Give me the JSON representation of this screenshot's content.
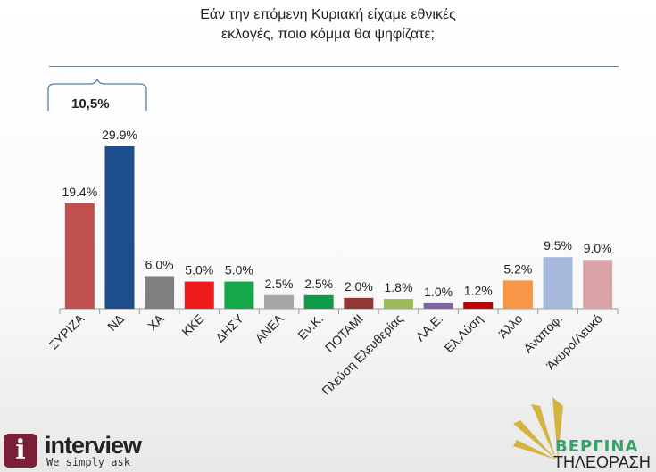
{
  "title_line1": "Εάν την επόμενη Κυριακή είχαμε εθνικές",
  "title_line2": "εκλογές, ποιο κόμμα θα ψηφίζατε;",
  "difference_label": "10,5%",
  "logo": {
    "name": "interview",
    "tagline": "We simply ask"
  },
  "broadcaster": {
    "name": "ΒΕΡΓΙΝΑ",
    "sub": "ΤΗΛΕΟΡΑΣΗ"
  },
  "chart_data": {
    "type": "bar",
    "title": "Εάν την επόμενη Κυριακή είχαμε εθνικές εκλογές, ποιο κόμμα θα ψηφίζατε;",
    "categories": [
      "ΣΥΡΙΖΑ",
      "ΝΔ",
      "ΧΑ",
      "ΚΚΕ",
      "ΔΗΣΥ",
      "ΑΝΕΛ",
      "Εν.Κ.",
      "ΠΟΤΑΜΙ",
      "Πλεύση Ελευθερίας",
      "ΛΑ.Ε.",
      "Ελ.Λύση",
      "Άλλο",
      "Αναποφ.",
      "Άκυρο/Λευκό"
    ],
    "values": [
      19.4,
      29.9,
      6.0,
      5.0,
      5.0,
      2.5,
      2.5,
      2.0,
      1.8,
      1.0,
      1.2,
      5.2,
      9.5,
      9.0
    ],
    "labels": [
      "19.4%",
      "29.9%",
      "6.0%",
      "5.0%",
      "5.0%",
      "2.5%",
      "2.5%",
      "2.0%",
      "1.8%",
      "1.0%",
      "1.2%",
      "5.2%",
      "9.5%",
      "9.0%"
    ],
    "colors": [
      "#c0504d",
      "#1f4e8c",
      "#808080",
      "#ee1c1c",
      "#14a84a",
      "#a6a6a6",
      "#109a4a",
      "#943634",
      "#9bbb59",
      "#8064a2",
      "#c00000",
      "#f79646",
      "#a6b8dc",
      "#d9a3a8"
    ],
    "ylim": [
      0,
      30
    ],
    "grid": false
  }
}
